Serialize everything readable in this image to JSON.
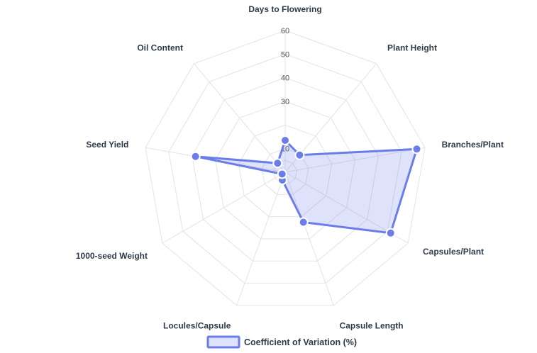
{
  "colors": {
    "series": "#6b7de8",
    "series_fill": "rgba(107,125,232,0.22)",
    "grid": "#e3e3e3",
    "label": "#2f3a4a"
  },
  "chart_data": {
    "type": "radar",
    "categories": [
      "Days to Flowering",
      "Plant Height",
      "Branches/Plant",
      "Capsules/Plant",
      "Capsule Length",
      "Locules/Capsule",
      "1000-seed Weight",
      "Seed Yield",
      "Oil Content"
    ],
    "series": [
      {
        "name": "Coefficient of Variation (%)",
        "values": [
          13.5,
          9.5,
          56.5,
          51.5,
          22.5,
          3.5,
          1.5,
          38.5,
          5.0
        ]
      }
    ],
    "r_range": [
      0,
      60
    ],
    "r_ticks": [
      10,
      20,
      30,
      40,
      50,
      60
    ],
    "r_tick_labels": [
      "10",
      "",
      "30",
      "40",
      "50",
      "60"
    ],
    "grid": true,
    "legend": "bottom"
  }
}
